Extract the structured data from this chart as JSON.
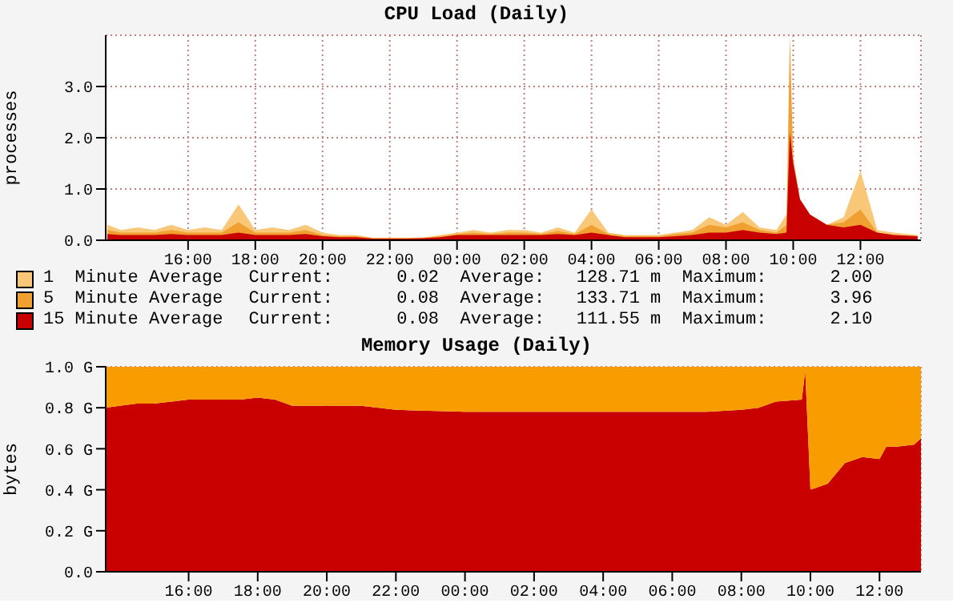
{
  "chart_data": [
    {
      "type": "area",
      "title": "CPU Load (Daily)",
      "ylabel": "processes",
      "x": [
        "--03-15T13:36",
        "--03-15T14:00",
        "--03-15T14:30",
        "--03-15T15:00",
        "--03-15T15:30",
        "--03-15T16:00",
        "--03-15T16:30",
        "--03-15T17:00",
        "--03-15T17:30",
        "--03-15T18:00",
        "--03-15T18:30",
        "--03-15T19:00",
        "--03-15T19:30",
        "--03-15T20:00",
        "--03-15T20:30",
        "--03-15T21:00",
        "--03-15T21:30",
        "--03-15T22:00",
        "--03-15T22:30",
        "--03-15T23:00",
        "--03-15T23:30",
        "--03-16T00:00",
        "--03-16T00:30",
        "--03-16T01:00",
        "--03-16T01:30",
        "--03-16T02:00",
        "--03-16T02:30",
        "--03-16T03:00",
        "--03-16T03:30",
        "--03-16T04:00",
        "--03-16T04:30",
        "--03-16T05:00",
        "--03-16T05:30",
        "--03-16T06:00",
        "--03-16T06:30",
        "--03-16T07:00",
        "--03-16T07:30",
        "--03-16T08:00",
        "--03-16T08:30",
        "--03-16T09:00",
        "--03-16T09:30",
        "--03-16T09:48",
        "--03-16T09:54",
        "--03-16T10:00",
        "--03-16T10:12",
        "--03-16T10:30",
        "--03-16T11:00",
        "--03-16T11:30",
        "--03-16T12:00",
        "--03-16T12:30",
        "--03-16T13:00",
        "--03-16T13:42"
      ],
      "series": [
        {
          "name": "1  Minute Average",
          "color": "#f8c878",
          "values": [
            0.3,
            0.2,
            0.25,
            0.2,
            0.3,
            0.2,
            0.25,
            0.2,
            0.7,
            0.2,
            0.25,
            0.2,
            0.3,
            0.15,
            0.1,
            0.1,
            0.05,
            0.05,
            0.05,
            0.05,
            0.1,
            0.15,
            0.2,
            0.15,
            0.2,
            0.2,
            0.15,
            0.25,
            0.15,
            0.6,
            0.15,
            0.1,
            0.1,
            0.1,
            0.15,
            0.2,
            0.45,
            0.3,
            0.55,
            0.25,
            0.2,
            0.5,
            2.0,
            null,
            null,
            null,
            0.3,
            0.45,
            1.35,
            0.2,
            0.15,
            0.1
          ]
        },
        {
          "name": "5  Minute Average",
          "color": "#f0a030",
          "values": [
            0.2,
            0.15,
            0.15,
            0.15,
            0.2,
            0.15,
            0.15,
            0.15,
            0.35,
            0.15,
            0.15,
            0.15,
            0.2,
            0.1,
            0.08,
            0.08,
            0.04,
            0.04,
            0.04,
            0.05,
            0.08,
            0.12,
            0.15,
            0.12,
            0.15,
            0.15,
            0.12,
            0.18,
            0.12,
            0.3,
            0.12,
            0.08,
            0.08,
            0.08,
            0.12,
            0.15,
            0.3,
            0.25,
            0.35,
            0.2,
            0.15,
            0.3,
            3.96,
            1.6,
            0.8,
            0.5,
            0.3,
            0.35,
            0.6,
            0.15,
            0.1,
            0.08
          ]
        },
        {
          "name": "15 Minute Average",
          "color": "#c80000",
          "values": [
            0.12,
            0.1,
            0.1,
            0.1,
            0.12,
            0.1,
            0.1,
            0.1,
            0.15,
            0.1,
            0.1,
            0.1,
            0.12,
            0.08,
            0.06,
            0.06,
            0.03,
            0.03,
            0.03,
            0.04,
            0.06,
            0.1,
            0.1,
            0.1,
            0.1,
            0.1,
            0.1,
            0.12,
            0.1,
            0.15,
            0.1,
            0.06,
            0.06,
            0.06,
            0.08,
            0.1,
            0.15,
            0.15,
            0.2,
            0.15,
            0.12,
            0.15,
            2.1,
            1.5,
            0.8,
            0.5,
            0.3,
            0.25,
            0.3,
            0.15,
            0.1,
            0.08
          ]
        }
      ],
      "annotations": [
        "Current:      0.02  Average:   128.71 m  Maximum:      2.00",
        "Current:      0.08  Average:   133.71 m  Maximum:      3.96",
        "Current:      0.08  Average:   111.55 m  Maximum:      2.10"
      ],
      "xlim": [
        "--03-15T13:33",
        "--03-16T13:48"
      ],
      "xticks": [
        {
          "value": "--03-15T16:00",
          "label": "16:00"
        },
        {
          "value": "--03-15T18:00",
          "label": "18:00"
        },
        {
          "value": "--03-15T20:00",
          "label": "20:00"
        },
        {
          "value": "--03-15T22:00",
          "label": "22:00"
        },
        {
          "value": "--03-16T00:00",
          "label": "00:00"
        },
        {
          "value": "--03-16T02:00",
          "label": "02:00"
        },
        {
          "value": "--03-16T04:00",
          "label": "04:00"
        },
        {
          "value": "--03-16T06:00",
          "label": "06:00"
        },
        {
          "value": "--03-16T08:00",
          "label": "08:00"
        },
        {
          "value": "--03-16T10:00",
          "label": "10:00"
        },
        {
          "value": "--03-16T12:00",
          "label": "12:00"
        }
      ],
      "ylim": [
        0,
        4
      ],
      "yticks": [
        {
          "value": 0,
          "label": "0.0"
        },
        {
          "value": 1,
          "label": "1.0"
        },
        {
          "value": 2,
          "label": "2.0"
        },
        {
          "value": 3,
          "label": "3.0"
        }
      ],
      "grid": true,
      "legend": "bottom"
    },
    {
      "type": "area",
      "title": "Memory Usage (Daily)",
      "ylabel": "bytes",
      "stacked": true,
      "x": [
        "--03-15T13:36",
        "--03-15T14:00",
        "--03-15T14:30",
        "--03-15T15:00",
        "--03-15T16:00",
        "--03-15T17:00",
        "--03-15T17:30",
        "--03-15T18:00",
        "--03-15T18:30",
        "--03-15T19:00",
        "--03-15T20:00",
        "--03-15T21:00",
        "--03-15T21:30",
        "--03-15T22:00",
        "--03-16T00:00",
        "--03-16T02:00",
        "--03-16T04:00",
        "--03-16T06:00",
        "--03-16T07:00",
        "--03-16T08:00",
        "--03-16T08:30",
        "--03-16T09:00",
        "--03-16T09:45",
        "--03-16T09:51",
        "--03-16T10:00",
        "--03-16T10:30",
        "--03-16T11:00",
        "--03-16T11:30",
        "--03-16T12:00",
        "--03-16T12:12",
        "--03-16T12:30",
        "--03-16T13:00",
        "--03-16T13:12"
      ],
      "series": [
        {
          "color": "#c80000",
          "values": [
            0.8,
            0.81,
            0.82,
            0.82,
            0.84,
            0.84,
            0.84,
            0.85,
            0.84,
            0.81,
            0.81,
            0.81,
            0.8,
            0.79,
            0.78,
            0.78,
            0.78,
            0.78,
            0.78,
            0.79,
            0.8,
            0.83,
            0.84,
            0.98,
            0.4,
            0.43,
            0.53,
            0.56,
            0.55,
            0.61,
            0.61,
            0.62,
            0.65
          ]
        },
        {
          "color": "#f89c00",
          "values": [
            0.2,
            0.19,
            0.18,
            0.18,
            0.16,
            0.16,
            0.16,
            0.15,
            0.16,
            0.19,
            0.19,
            0.19,
            0.2,
            0.21,
            0.22,
            0.22,
            0.22,
            0.22,
            0.22,
            0.21,
            0.2,
            0.17,
            0.16,
            0.02,
            0.6,
            0.57,
            0.47,
            0.44,
            0.45,
            0.39,
            0.39,
            0.38,
            0.35
          ]
        }
      ],
      "xlim": [
        "--03-15T13:36",
        "--03-16T13:12"
      ],
      "xticks": [
        {
          "value": "--03-15T16:00",
          "label": "16:00"
        },
        {
          "value": "--03-15T18:00",
          "label": "18:00"
        },
        {
          "value": "--03-15T20:00",
          "label": "20:00"
        },
        {
          "value": "--03-15T22:00",
          "label": "22:00"
        },
        {
          "value": "--03-16T00:00",
          "label": "00:00"
        },
        {
          "value": "--03-16T02:00",
          "label": "02:00"
        },
        {
          "value": "--03-16T04:00",
          "label": "04:00"
        },
        {
          "value": "--03-16T06:00",
          "label": "06:00"
        },
        {
          "value": "--03-16T08:00",
          "label": "08:00"
        },
        {
          "value": "--03-16T10:00",
          "label": "10:00"
        },
        {
          "value": "--03-16T12:00",
          "label": "12:00"
        }
      ],
      "ylim": [
        0,
        1
      ],
      "yticks": [
        {
          "value": 0,
          "label": "0.0"
        },
        {
          "value": 0.2,
          "label": "0.2 G"
        },
        {
          "value": 0.4,
          "label": "0.4 G"
        },
        {
          "value": 0.6,
          "label": "0.6 G"
        },
        {
          "value": 0.8,
          "label": "0.8 G"
        },
        {
          "value": 1,
          "label": "1.0 G"
        }
      ],
      "grid": true
    }
  ]
}
